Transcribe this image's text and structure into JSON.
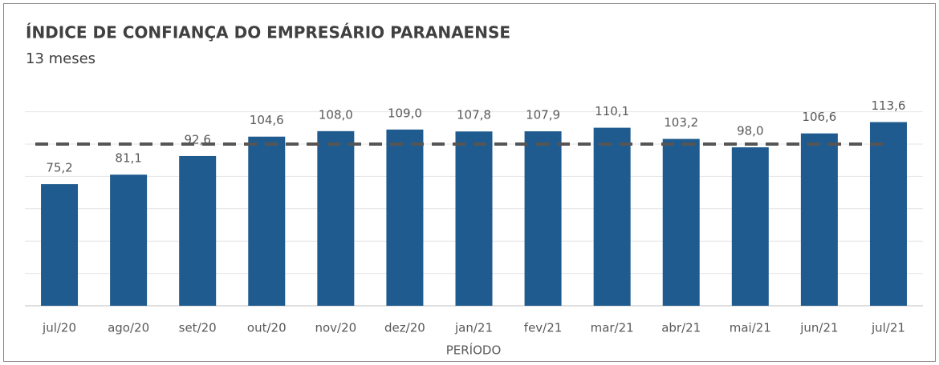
{
  "chart_data": {
    "type": "bar",
    "title": "ÍNDICE DE CONFIANÇA DO EMPRESÁRIO  PARANAENSE",
    "subtitle": "13 meses",
    "x_label": "PERÍODO",
    "categories": [
      "jul/20",
      "ago/20",
      "set/20",
      "out/20",
      "nov/20",
      "dez/20",
      "jan/21",
      "fev/21",
      "mar/21",
      "abr/21",
      "mai/21",
      "jun/21",
      "jul/21"
    ],
    "values": [
      75.2,
      81.1,
      92.6,
      104.6,
      108.0,
      109.0,
      107.8,
      107.9,
      110.1,
      103.2,
      98.0,
      106.6,
      113.6
    ],
    "value_labels": [
      "75,2",
      "81,1",
      "92,6",
      "104,6",
      "108,0",
      "109,0",
      "107,8",
      "107,9",
      "110,1",
      "103,2",
      "98,0",
      "106,6",
      "113,6"
    ],
    "color": "#1f5b8e",
    "ylim": [
      0,
      120
    ],
    "yticks": [
      0,
      20,
      40,
      60,
      80,
      100,
      120
    ],
    "grid": true,
    "reference_value": 100,
    "reference_color": "#555555"
  }
}
